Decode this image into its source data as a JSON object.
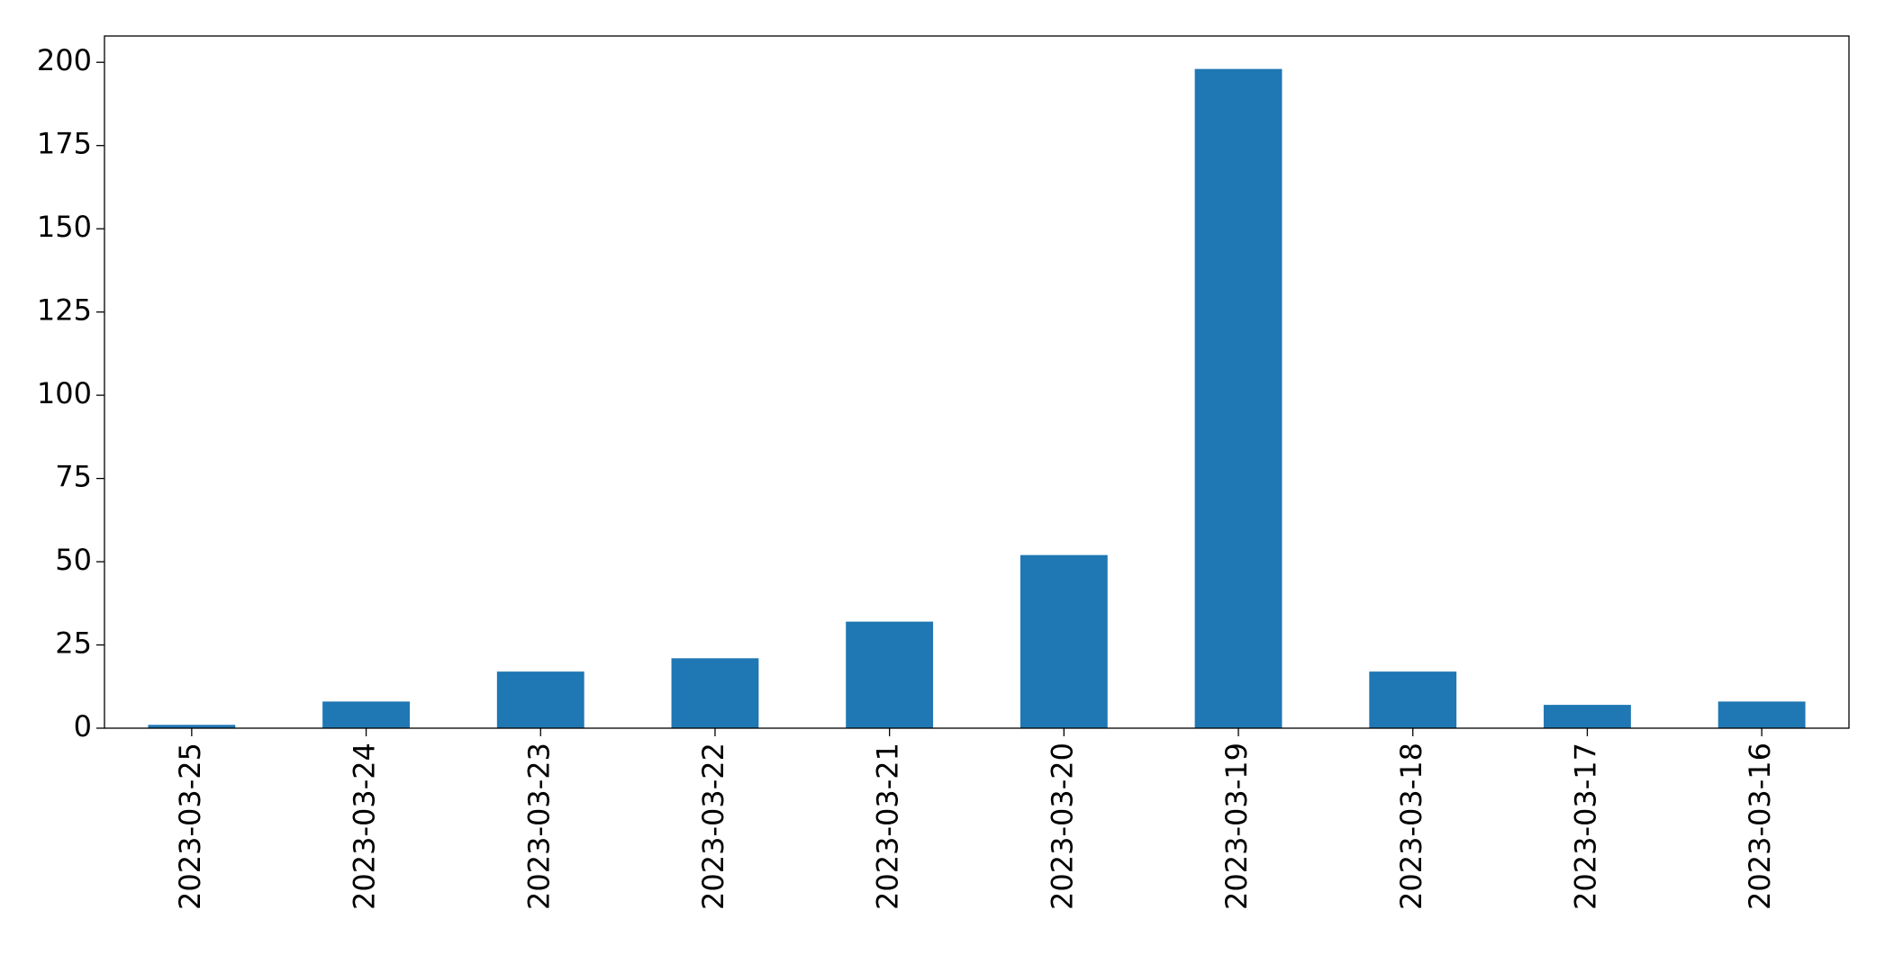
{
  "chart_data": {
    "type": "bar",
    "categories": [
      "2023-03-25",
      "2023-03-24",
      "2023-03-23",
      "2023-03-22",
      "2023-03-21",
      "2023-03-20",
      "2023-03-19",
      "2023-03-18",
      "2023-03-17",
      "2023-03-16"
    ],
    "values": [
      1,
      8,
      17,
      21,
      32,
      52,
      198,
      17,
      7,
      8
    ],
    "color": "#1f77b4",
    "ylim": [
      0,
      207.9
    ],
    "yticks": [
      0,
      25,
      50,
      75,
      100,
      125,
      150,
      175,
      200
    ],
    "grid": false
  }
}
